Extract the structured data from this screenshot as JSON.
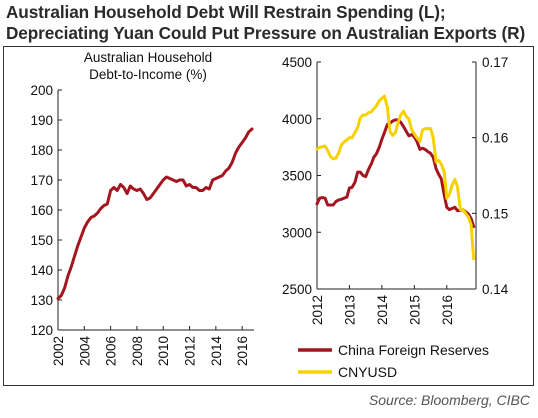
{
  "title_line1": "Australian Household Debt Will Restrain Spending (L);",
  "title_line2": "Depreciating Yuan Could Put Pressure on Australian Exports (R)",
  "source": "Source: Bloomberg, CIBC",
  "colors": {
    "red": "#a31620",
    "yellow": "#f7d200"
  },
  "chart_data": [
    {
      "type": "line",
      "title": "Australian Household Debt-to-Income (%)",
      "title_lines": [
        "Australian Household",
        "Debt-to-Income (%)"
      ],
      "ylim": [
        120,
        200
      ],
      "yticks": [
        120,
        130,
        140,
        150,
        160,
        170,
        180,
        190,
        200
      ],
      "xlim": [
        2002,
        2016.9
      ],
      "xticks": [
        2002,
        2004,
        2006,
        2008,
        2010,
        2012,
        2014,
        2016
      ],
      "grid": false,
      "series": [
        {
          "color": "#a31620",
          "x": [
            2002.0,
            2002.25,
            2002.5,
            2002.75,
            2003.0,
            2003.25,
            2003.5,
            2003.75,
            2004.0,
            2004.25,
            2004.5,
            2004.75,
            2005.0,
            2005.25,
            2005.5,
            2005.75,
            2006.0,
            2006.25,
            2006.5,
            2006.75,
            2007.0,
            2007.25,
            2007.5,
            2007.75,
            2008.0,
            2008.25,
            2008.5,
            2008.75,
            2009.0,
            2009.25,
            2009.5,
            2009.75,
            2010.0,
            2010.25,
            2010.5,
            2010.75,
            2011.0,
            2011.25,
            2011.5,
            2011.75,
            2012.0,
            2012.25,
            2012.5,
            2012.75,
            2013.0,
            2013.25,
            2013.5,
            2013.75,
            2014.0,
            2014.25,
            2014.5,
            2014.75,
            2015.0,
            2015.25,
            2015.5,
            2015.75,
            2016.0,
            2016.25,
            2016.5,
            2016.75
          ],
          "values": [
            130.5,
            131.5,
            134,
            138,
            141,
            144.5,
            148,
            151,
            154,
            156,
            157.5,
            158,
            159,
            160.5,
            161.5,
            162,
            166.5,
            167.5,
            166.5,
            168.5,
            167.5,
            165.5,
            168,
            167,
            166.5,
            167,
            165.5,
            163.5,
            164,
            165.5,
            167,
            168.5,
            170,
            171,
            170.5,
            170,
            169.5,
            170,
            170,
            168,
            168.5,
            167.5,
            167.5,
            166.5,
            166.5,
            167.5,
            167,
            170,
            170.5,
            171,
            171.5,
            173,
            174,
            176,
            179,
            181,
            182.5,
            184,
            186,
            187
          ]
        }
      ]
    },
    {
      "type": "line",
      "xlim": [
        2012,
        2016.9
      ],
      "xticks": [
        2012,
        2013,
        2014,
        2015,
        2016
      ],
      "ylim": [
        2500,
        4500
      ],
      "yticks": [
        2500,
        3000,
        3500,
        4000,
        4500
      ],
      "ylim_right": [
        0.14,
        0.17
      ],
      "yticks_right": [
        0.14,
        0.15,
        0.16,
        0.17
      ],
      "grid": false,
      "legend": "bottom",
      "series": [
        {
          "name": "China Foreign Reserves",
          "axis": "left",
          "color": "#a31620",
          "x": [
            2012.0,
            2012.08,
            2012.17,
            2012.25,
            2012.33,
            2012.42,
            2012.5,
            2012.58,
            2012.67,
            2012.75,
            2012.83,
            2012.92,
            2013.0,
            2013.08,
            2013.17,
            2013.25,
            2013.33,
            2013.42,
            2013.5,
            2013.58,
            2013.67,
            2013.75,
            2013.83,
            2013.92,
            2014.0,
            2014.08,
            2014.17,
            2014.25,
            2014.33,
            2014.42,
            2014.5,
            2014.58,
            2014.67,
            2014.75,
            2014.83,
            2014.92,
            2015.0,
            2015.08,
            2015.17,
            2015.25,
            2015.33,
            2015.42,
            2015.5,
            2015.58,
            2015.67,
            2015.75,
            2015.83,
            2015.92,
            2016.0,
            2016.08,
            2016.17,
            2016.25,
            2016.33,
            2016.42,
            2016.5,
            2016.58,
            2016.67,
            2016.75,
            2016.83
          ],
          "values": [
            3250,
            3300,
            3305,
            3300,
            3240,
            3240,
            3240,
            3270,
            3285,
            3290,
            3300,
            3310,
            3390,
            3395,
            3440,
            3530,
            3530,
            3500,
            3490,
            3550,
            3600,
            3660,
            3690,
            3750,
            3820,
            3880,
            3950,
            3960,
            3980,
            3990,
            3990,
            3970,
            3930,
            3890,
            3850,
            3860,
            3840,
            3800,
            3730,
            3740,
            3730,
            3710,
            3695,
            3660,
            3560,
            3510,
            3470,
            3330,
            3220,
            3200,
            3210,
            3220,
            3190,
            3195,
            3200,
            3180,
            3160,
            3120,
            3050
          ]
        },
        {
          "name": "CNYUSD",
          "axis": "right",
          "color": "#f7d200",
          "x": [
            2012.0,
            2012.08,
            2012.17,
            2012.25,
            2012.33,
            2012.42,
            2012.5,
            2012.58,
            2012.67,
            2012.75,
            2012.83,
            2012.92,
            2013.0,
            2013.08,
            2013.17,
            2013.25,
            2013.33,
            2013.42,
            2013.5,
            2013.58,
            2013.67,
            2013.75,
            2013.83,
            2013.92,
            2014.0,
            2014.08,
            2014.17,
            2014.25,
            2014.33,
            2014.42,
            2014.5,
            2014.58,
            2014.67,
            2014.75,
            2014.83,
            2014.92,
            2015.0,
            2015.08,
            2015.17,
            2015.25,
            2015.33,
            2015.42,
            2015.5,
            2015.58,
            2015.67,
            2015.75,
            2015.83,
            2015.92,
            2016.0,
            2016.08,
            2016.17,
            2016.25,
            2016.33,
            2016.42,
            2016.5,
            2016.58,
            2016.67,
            2016.75,
            2016.83
          ],
          "values": [
            0.1585,
            0.1587,
            0.1588,
            0.1589,
            0.1583,
            0.1575,
            0.1572,
            0.1573,
            0.158,
            0.159,
            0.1594,
            0.1597,
            0.16,
            0.16,
            0.1607,
            0.1613,
            0.1626,
            0.163,
            0.163,
            0.1633,
            0.1634,
            0.1638,
            0.1642,
            0.1649,
            0.1652,
            0.1655,
            0.164,
            0.1608,
            0.1603,
            0.1607,
            0.162,
            0.163,
            0.1635,
            0.1628,
            0.1625,
            0.161,
            0.1605,
            0.16,
            0.1595,
            0.161,
            0.1612,
            0.1612,
            0.1612,
            0.16,
            0.1568,
            0.157,
            0.1565,
            0.1555,
            0.152,
            0.1525,
            0.1538,
            0.1545,
            0.1535,
            0.1505,
            0.1505,
            0.15,
            0.1495,
            0.1485,
            0.144
          ]
        }
      ]
    }
  ]
}
